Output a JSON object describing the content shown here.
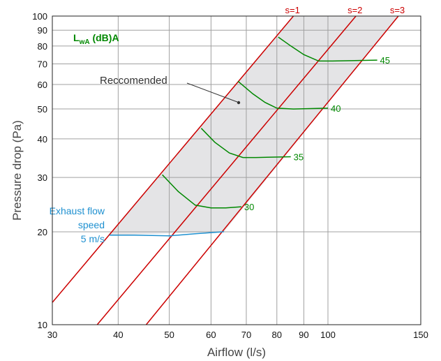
{
  "chart_data": {
    "type": "line",
    "title": "",
    "xlabel": "Airflow (l/s)",
    "ylabel": "Pressure drop (Pa)",
    "x_scale": "log",
    "y_scale": "log",
    "xlim": [
      30,
      150
    ],
    "ylim": [
      10,
      100
    ],
    "grid": true,
    "x_ticks": [
      30,
      40,
      50,
      60,
      70,
      80,
      90,
      100,
      150
    ],
    "y_ticks": [
      10,
      20,
      30,
      40,
      50,
      60,
      70,
      80,
      90,
      100
    ],
    "legend_title": "L_wA (dB)A",
    "legend_title_main": "L",
    "legend_title_sub": "wA",
    "legend_title_rest": " (dB)A",
    "recommended_label": "Reccomended",
    "exhaust_label_lines": [
      "Exhaust flow",
      "speed",
      "5 m/s"
    ],
    "colors": {
      "s_lines": "#cc0000",
      "sound_lines": "#008800",
      "exhaust_line": "#1e90d0",
      "recommended_fill": "#e4e4e6",
      "grid": "#a0a0a0",
      "annotation": "#333333"
    },
    "s_lines": [
      {
        "name": "s=1",
        "points": [
          [
            30,
            11.8
          ],
          [
            86,
            100
          ]
        ]
      },
      {
        "name": "s=2",
        "points": [
          [
            36.5,
            10
          ],
          [
            113,
            100
          ]
        ]
      },
      {
        "name": "s=3",
        "points": [
          [
            45.2,
            10
          ],
          [
            136,
            100
          ]
        ]
      }
    ],
    "recommended_area": [
      [
        38.5,
        19.5
      ],
      [
        63.5,
        20
      ],
      [
        136,
        100
      ],
      [
        86,
        100
      ]
    ],
    "sound_series": [
      {
        "name": "30",
        "points": [
          [
            48.5,
            30.6
          ],
          [
            52,
            27
          ],
          [
            56,
            24.4
          ],
          [
            60,
            23.9
          ],
          [
            64,
            23.9
          ],
          [
            68.5,
            24.1
          ]
        ]
      },
      {
        "name": "35",
        "points": [
          [
            57.5,
            43.3
          ],
          [
            61,
            39
          ],
          [
            65,
            36
          ],
          [
            69,
            34.8
          ],
          [
            73,
            34.8
          ],
          [
            85,
            35
          ]
        ]
      },
      {
        "name": "40",
        "points": [
          [
            67.5,
            61.5
          ],
          [
            72,
            56
          ],
          [
            76,
            52.5
          ],
          [
            80,
            50.3
          ],
          [
            86,
            50
          ],
          [
            100,
            50.3
          ]
        ]
      },
      {
        "name": "45",
        "points": [
          [
            80.5,
            85.5
          ],
          [
            85,
            80
          ],
          [
            90,
            75
          ],
          [
            96,
            71.5
          ],
          [
            102,
            71.5
          ],
          [
            124,
            72
          ]
        ]
      }
    ],
    "exhaust_series": {
      "name": "5 m/s",
      "points": [
        [
          38.5,
          19.5
        ],
        [
          43,
          19.5
        ],
        [
          50,
          19.4
        ],
        [
          56,
          19.7
        ],
        [
          63.5,
          20
        ]
      ]
    }
  }
}
